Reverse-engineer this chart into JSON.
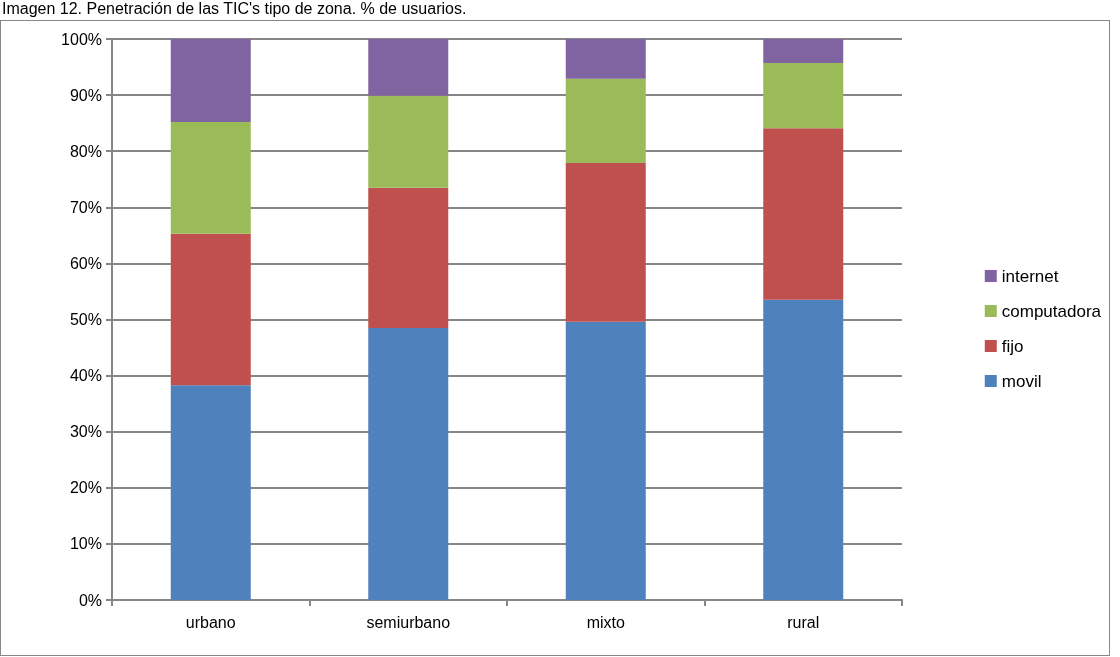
{
  "chart_data": {
    "type": "bar",
    "title": "Imagen 12. Penetración de las TIC's tipo de zona. % de usuarios.",
    "categories": [
      "urbano",
      "semiurbano",
      "mixto",
      "rural"
    ],
    "stacked": true,
    "series": [
      {
        "name": "movil",
        "color": "#4f81bd",
        "values": [
          38.3,
          48.5,
          49.6,
          53.5
        ]
      },
      {
        "name": "fijo",
        "color": "#c0504d",
        "values": [
          27,
          25,
          28.3,
          30.6
        ]
      },
      {
        "name": "computadora",
        "color": "#9bbb59",
        "values": [
          19.9,
          16.4,
          15,
          11.6
        ]
      },
      {
        "name": "internet",
        "color": "#8064a2",
        "values": [
          14.8,
          10.1,
          7.1,
          4.3
        ]
      }
    ],
    "ylim": [
      0,
      100
    ],
    "yticks": [
      {
        "value": 0,
        "label": "0%"
      },
      {
        "value": 10,
        "label": "10%"
      },
      {
        "value": 20,
        "label": "20%"
      },
      {
        "value": 30,
        "label": "30%"
      },
      {
        "value": 40,
        "label": "40%"
      },
      {
        "value": 50,
        "label": "50%"
      },
      {
        "value": 60,
        "label": "60%"
      },
      {
        "value": 70,
        "label": "70%"
      },
      {
        "value": 80,
        "label": "80%"
      },
      {
        "value": 90,
        "label": "90%"
      },
      {
        "value": 100,
        "label": "100%"
      }
    ],
    "grid": "y",
    "legend": "right"
  }
}
